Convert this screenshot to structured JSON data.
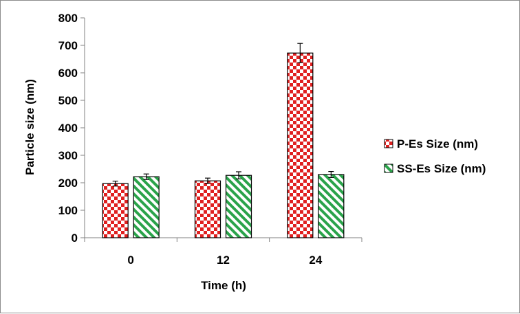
{
  "chart_data": {
    "type": "bar",
    "title": "",
    "xlabel": "Time (h)",
    "ylabel": "Particle size (nm)",
    "categories": [
      "0",
      "12",
      "24"
    ],
    "ylim": [
      0,
      800
    ],
    "yticks": [
      0,
      100,
      200,
      300,
      400,
      500,
      600,
      700,
      800
    ],
    "grid": false,
    "legend_position": "right",
    "series": [
      {
        "name": "P-Es Size (nm)",
        "values": [
          197,
          207,
          672
        ],
        "errors": [
          9,
          10,
          35
        ],
        "color": "#e02020",
        "pattern": "checkerboard"
      },
      {
        "name": "SS-Es Size (nm)",
        "values": [
          222,
          227,
          230
        ],
        "errors": [
          10,
          13,
          11
        ],
        "color": "#2aa34a",
        "pattern": "diagonal-stripes"
      }
    ]
  }
}
